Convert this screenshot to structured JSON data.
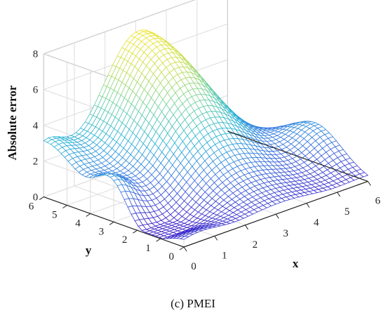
{
  "chart_data": {
    "type": "surface-mesh",
    "title": "",
    "caption": "(c) PMEI",
    "xlabel": "x",
    "ylabel": "y",
    "zlabel": "Absolute error",
    "xlim": [
      0,
      6
    ],
    "ylim": [
      0,
      6
    ],
    "zlim": [
      0,
      8
    ],
    "xticks": [
      "0",
      "1",
      "2",
      "3",
      "4",
      "5",
      "6"
    ],
    "yticks": [
      "0",
      "1",
      "2",
      "3",
      "4",
      "5",
      "6"
    ],
    "zticks": [
      "0",
      "2",
      "4",
      "6",
      "8"
    ],
    "grid": true,
    "colormap": [
      "#3b1cc6",
      "#3a6fe0",
      "#2ab3d6",
      "#6fd1a0",
      "#c8de4e",
      "#f5e62a"
    ],
    "mesh_points_per_axis": 41,
    "surface_samples": {
      "description_units": "z = absolute error at (x, y)",
      "peak": {
        "x": 3.1,
        "y": 6.0,
        "z": 7.4
      },
      "ridge_at_x0_y6": 3.0,
      "corner_x0_y0": 0.3,
      "local_bump": {
        "x": 0.0,
        "y": 3.0,
        "z": 2.2
      }
    }
  }
}
